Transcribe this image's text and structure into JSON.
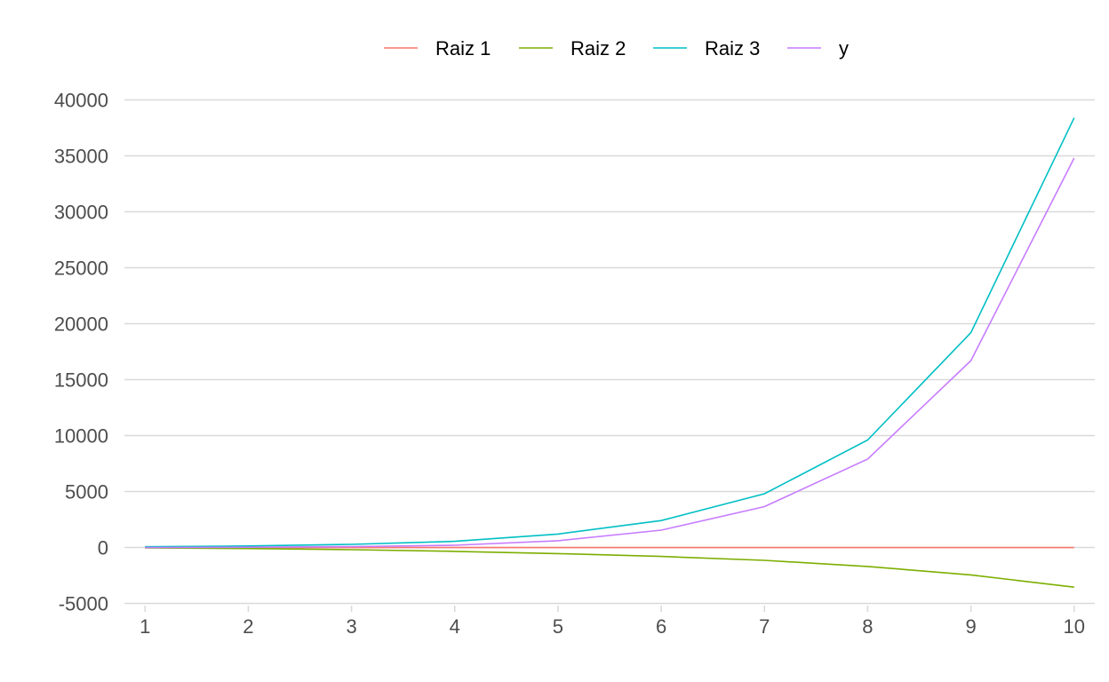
{
  "chart_data": {
    "type": "line",
    "title": "",
    "xlabel": "",
    "ylabel": "",
    "x": [
      1,
      2,
      3,
      4,
      5,
      6,
      7,
      8,
      9,
      10
    ],
    "xlim": [
      0.8,
      10.2
    ],
    "ylim": [
      -5200,
      40200
    ],
    "yticks": [
      -5000,
      0,
      5000,
      10000,
      15000,
      20000,
      25000,
      30000,
      35000,
      40000
    ],
    "xticks": [
      1,
      2,
      3,
      4,
      5,
      6,
      7,
      8,
      9,
      10
    ],
    "grid": "horizontal",
    "legend_position": "top",
    "series": [
      {
        "name": "Raiz 1",
        "color": "#F8766D",
        "values": [
          -10,
          -10,
          -10,
          -10,
          -10,
          -10,
          -10,
          -10,
          -10,
          -10
        ]
      },
      {
        "name": "Raiz 2",
        "color": "#7CAE00",
        "values": [
          -40,
          -100,
          -200,
          -350,
          -550,
          -800,
          -1150,
          -1700,
          -2450,
          -3550
        ]
      },
      {
        "name": "Raiz 3",
        "color": "#00BFC4",
        "values": [
          60,
          130,
          280,
          550,
          1200,
          2400,
          4800,
          9600,
          19200,
          38400
        ]
      },
      {
        "name": "y",
        "color": "#C77CFF",
        "values": [
          -10,
          20,
          80,
          200,
          600,
          1550,
          3650,
          7900,
          16700,
          34800
        ]
      }
    ]
  }
}
